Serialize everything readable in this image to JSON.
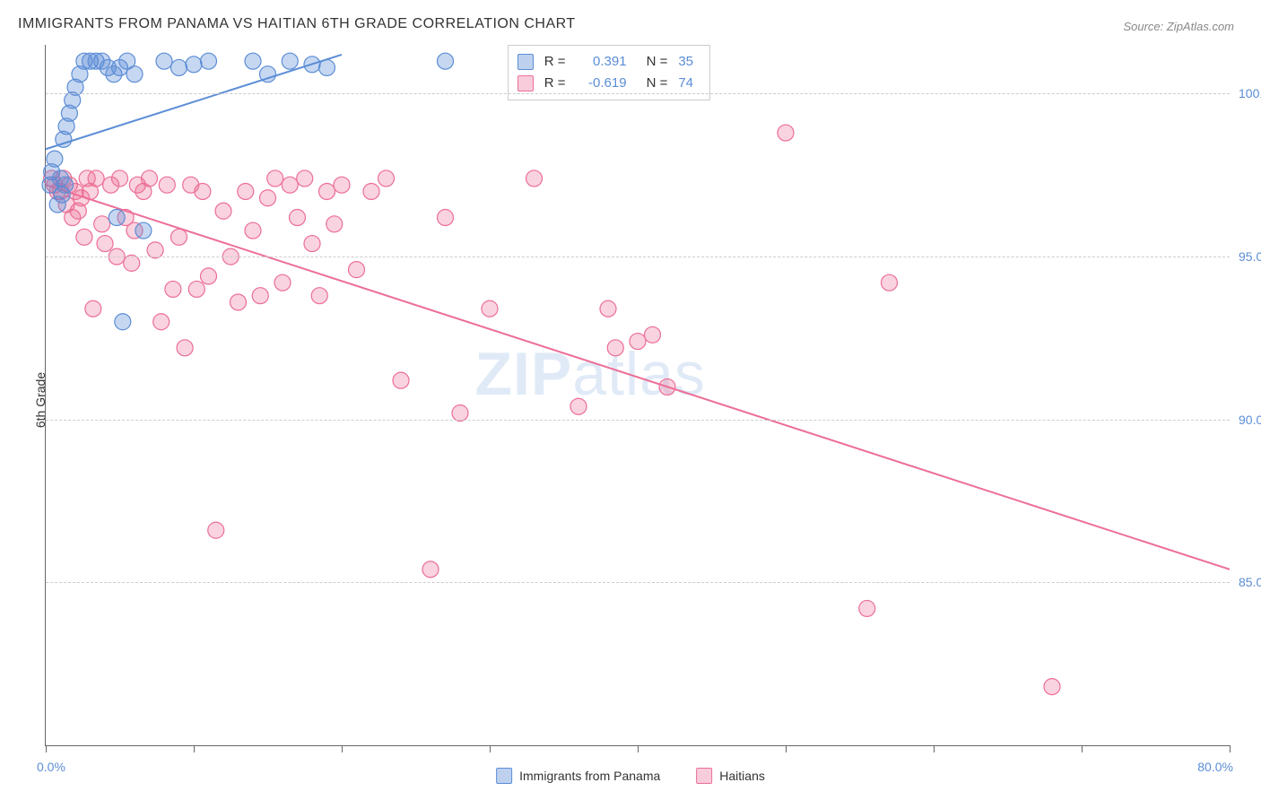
{
  "title": "IMMIGRANTS FROM PANAMA VS HAITIAN 6TH GRADE CORRELATION CHART",
  "source": "Source: ZipAtlas.com",
  "y_axis_label": "6th Grade",
  "watermark": {
    "bold": "ZIP",
    "rest": "atlas"
  },
  "chart": {
    "type": "scatter",
    "xlim": [
      0,
      80
    ],
    "ylim": [
      80,
      101.5
    ],
    "x_ticks": [
      0,
      10,
      20,
      30,
      40,
      50,
      60,
      70,
      80
    ],
    "x_tick_labels": {
      "0": "0.0%",
      "80": "80.0%"
    },
    "y_ticks": [
      85,
      90,
      95,
      100
    ],
    "y_tick_labels": {
      "85": "85.0%",
      "90": "90.0%",
      "95": "95.0%",
      "100": "100.0%"
    },
    "background_color": "#ffffff",
    "grid_color": "#cccccc",
    "marker_radius": 9,
    "marker_stroke_width": 1.2,
    "line_width": 2
  },
  "series": [
    {
      "key": "panama",
      "label": "Immigrants from Panama",
      "color": "#5b8dd6",
      "fill": "rgba(91,141,214,0.35)",
      "R": "0.391",
      "N": "35",
      "trend": {
        "x1": 0,
        "y1": 98.3,
        "x2": 20,
        "y2": 101.2
      },
      "points": [
        [
          0.3,
          97.2
        ],
        [
          0.4,
          97.6
        ],
        [
          0.6,
          98.0
        ],
        [
          0.8,
          96.6
        ],
        [
          1.0,
          97.4
        ],
        [
          1.2,
          98.6
        ],
        [
          1.4,
          99.0
        ],
        [
          1.6,
          99.4
        ],
        [
          1.8,
          99.8
        ],
        [
          2.0,
          100.2
        ],
        [
          2.3,
          100.6
        ],
        [
          2.6,
          101.0
        ],
        [
          3.0,
          101.0
        ],
        [
          3.4,
          101.0
        ],
        [
          3.8,
          101.0
        ],
        [
          4.2,
          100.8
        ],
        [
          4.6,
          100.6
        ],
        [
          5.0,
          100.8
        ],
        [
          5.5,
          101.0
        ],
        [
          6.0,
          100.6
        ],
        [
          6.6,
          95.8
        ],
        [
          8.0,
          101.0
        ],
        [
          9.0,
          100.8
        ],
        [
          10.0,
          100.9
        ],
        [
          11.0,
          101.0
        ],
        [
          14.0,
          101.0
        ],
        [
          15.0,
          100.6
        ],
        [
          16.5,
          101.0
        ],
        [
          18.0,
          100.9
        ],
        [
          19.0,
          100.8
        ],
        [
          27.0,
          101.0
        ],
        [
          4.8,
          96.2
        ],
        [
          5.2,
          93.0
        ],
        [
          1.1,
          96.9
        ],
        [
          1.3,
          97.2
        ]
      ]
    },
    {
      "key": "haitians",
      "label": "Haitians",
      "color": "#ec6e96",
      "fill": "rgba(236,110,150,0.30)",
      "R": "-0.619",
      "N": "74",
      "trend": {
        "x1": 0,
        "y1": 97.2,
        "x2": 80,
        "y2": 85.4
      },
      "points": [
        [
          0.4,
          97.4
        ],
        [
          0.6,
          97.2
        ],
        [
          0.8,
          97.0
        ],
        [
          1.0,
          97.0
        ],
        [
          1.2,
          97.4
        ],
        [
          1.4,
          96.6
        ],
        [
          1.6,
          97.2
        ],
        [
          1.8,
          96.2
        ],
        [
          2.0,
          97.0
        ],
        [
          2.2,
          96.4
        ],
        [
          2.4,
          96.8
        ],
        [
          2.6,
          95.6
        ],
        [
          2.8,
          97.4
        ],
        [
          3.0,
          97.0
        ],
        [
          3.4,
          97.4
        ],
        [
          3.8,
          96.0
        ],
        [
          4.0,
          95.4
        ],
        [
          4.4,
          97.2
        ],
        [
          4.8,
          95.0
        ],
        [
          5.0,
          97.4
        ],
        [
          5.4,
          96.2
        ],
        [
          5.8,
          94.8
        ],
        [
          6.2,
          97.2
        ],
        [
          6.6,
          97.0
        ],
        [
          7.0,
          97.4
        ],
        [
          7.4,
          95.2
        ],
        [
          7.8,
          93.0
        ],
        [
          8.2,
          97.2
        ],
        [
          8.6,
          94.0
        ],
        [
          9.0,
          95.6
        ],
        [
          9.4,
          92.2
        ],
        [
          9.8,
          97.2
        ],
        [
          10.2,
          94.0
        ],
        [
          10.6,
          97.0
        ],
        [
          11.0,
          94.4
        ],
        [
          11.5,
          86.6
        ],
        [
          12.0,
          96.4
        ],
        [
          12.5,
          95.0
        ],
        [
          13.0,
          93.6
        ],
        [
          13.5,
          97.0
        ],
        [
          14.0,
          95.8
        ],
        [
          14.5,
          93.8
        ],
        [
          15.0,
          96.8
        ],
        [
          15.5,
          97.4
        ],
        [
          16.0,
          94.2
        ],
        [
          16.5,
          97.2
        ],
        [
          17.0,
          96.2
        ],
        [
          17.5,
          97.4
        ],
        [
          18.0,
          95.4
        ],
        [
          18.5,
          93.8
        ],
        [
          19.0,
          97.0
        ],
        [
          19.5,
          96.0
        ],
        [
          20.0,
          97.2
        ],
        [
          21.0,
          94.6
        ],
        [
          22.0,
          97.0
        ],
        [
          23.0,
          97.4
        ],
        [
          24.0,
          91.2
        ],
        [
          26.0,
          85.4
        ],
        [
          27.0,
          96.2
        ],
        [
          28.0,
          90.2
        ],
        [
          30.0,
          93.4
        ],
        [
          33.0,
          97.4
        ],
        [
          36.0,
          90.4
        ],
        [
          38.0,
          93.4
        ],
        [
          40.0,
          92.4
        ],
        [
          41.0,
          92.6
        ],
        [
          42.0,
          91.0
        ],
        [
          38.5,
          92.2
        ],
        [
          50.0,
          98.8
        ],
        [
          55.5,
          84.2
        ],
        [
          57.0,
          94.2
        ],
        [
          68.0,
          81.8
        ],
        [
          3.2,
          93.4
        ],
        [
          6.0,
          95.8
        ]
      ]
    }
  ],
  "stats_labels": {
    "R": "R =",
    "N": "N ="
  },
  "legend": {
    "panama": "Immigrants from Panama",
    "haitians": "Haitians"
  }
}
